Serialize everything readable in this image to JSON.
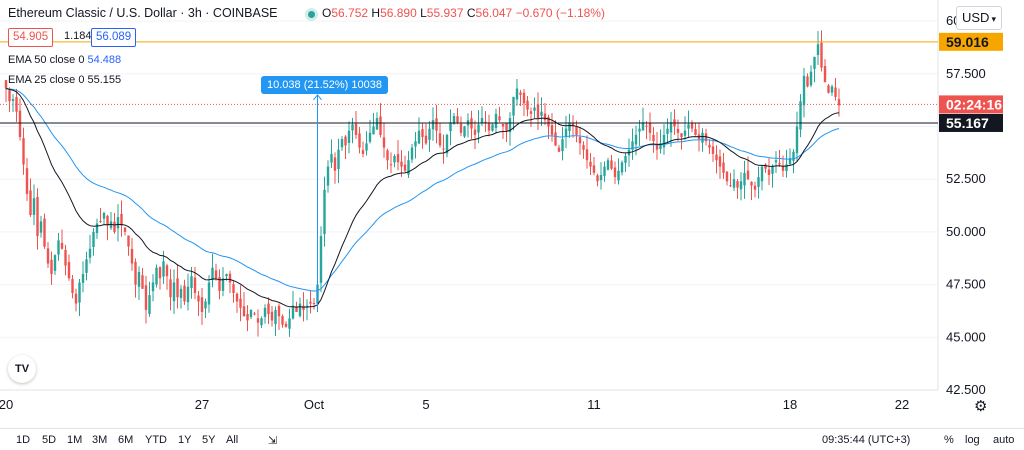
{
  "header": {
    "title": "Ethereum Classic / U.S. Dollar · 3h · COINBASE",
    "ohlc": {
      "o_label": "O",
      "o": "56.752",
      "h_label": "H",
      "h": "56.890",
      "l_label": "L",
      "l": "55.937",
      "c_label": "C",
      "c": "56.047",
      "change": "−0.670 (−1.18%)"
    },
    "bid": "54.905",
    "spread": "1.184",
    "ask": "56.089",
    "indicators": [
      {
        "label": "EMA 50 close 0",
        "value": "54.488",
        "color": "#2196f3"
      },
      {
        "label": "EMA 25 close 0",
        "value": "55.155",
        "color": "#131722"
      }
    ]
  },
  "currency_button": "USD",
  "measure_label": "10.038 (21.52%) 10038",
  "price_labels": {
    "orange_line": "59.016",
    "countdown_price": "02:24:16",
    "black_line": "55.167"
  },
  "bottom_bar": {
    "ranges": [
      "1D",
      "5D",
      "1M",
      "3M",
      "6M",
      "YTD",
      "1Y",
      "5Y",
      "All"
    ],
    "time": "09:35:44 (UTC+3)",
    "percent": "%",
    "log": "log",
    "auto": "auto"
  },
  "colors": {
    "up": "#26a69a",
    "down": "#ef5350",
    "ema50": "#2196f3",
    "ema25": "#131722",
    "orange": "#f7a600",
    "axis_text": "#131722"
  },
  "chart_data": {
    "type": "candlestick",
    "ylim": [
      42.5,
      61.0
    ],
    "y_ticks": [
      "60.000",
      "57.500",
      "55.000",
      "52.500",
      "50.000",
      "47.500",
      "45.000",
      "42.500"
    ],
    "y_tick_values": [
      60.0,
      57.5,
      55.0,
      52.5,
      50.0,
      47.5,
      45.0,
      42.5
    ],
    "x_ticks": [
      {
        "label": "20",
        "index": 0
      },
      {
        "label": "27",
        "index": 56
      },
      {
        "label": "Oct",
        "index": 88
      },
      {
        "label": "5",
        "index": 120
      },
      {
        "label": "11",
        "index": 168
      },
      {
        "label": "18",
        "index": 224
      },
      {
        "label": "22",
        "index": 256
      }
    ],
    "horizontal_lines": [
      {
        "value": 59.016,
        "color": "#f7a600",
        "name": "orange_line"
      },
      {
        "value": 55.167,
        "color": "#131722",
        "name": "black_line"
      }
    ],
    "last_price": 56.047,
    "close_series": [
      56.8,
      56.2,
      56.3,
      55.7,
      54.5,
      53.2,
      51.8,
      50.8,
      51.6,
      49.8,
      50.5,
      49.3,
      48.5,
      48.0,
      48.9,
      49.6,
      49.2,
      48.4,
      47.8,
      47.1,
      46.6,
      47.6,
      48.0,
      48.7,
      49.2,
      50.0,
      50.4,
      50.5,
      50.9,
      50.3,
      50.5,
      50.0,
      50.7,
      50.3,
      50.0,
      49.3,
      48.5,
      47.5,
      48.1,
      47.3,
      46.3,
      47.0,
      47.6,
      48.3,
      47.8,
      48.6,
      47.9,
      46.9,
      47.6,
      46.9,
      47.3,
      46.7,
      47.4,
      47.9,
      47.1,
      46.7,
      46.2,
      46.7,
      47.6,
      48.3,
      47.8,
      47.2,
      47.8,
      48.0,
      47.6,
      47.1,
      46.7,
      46.4,
      46.0,
      45.8,
      46.3,
      46.1,
      45.7,
      45.9,
      46.4,
      46.1,
      45.8,
      46.3,
      46.0,
      45.6,
      45.5,
      45.9,
      46.5,
      46.2,
      46.6,
      46.3,
      46.5,
      46.6,
      46.6,
      47.5,
      49.8,
      52.0,
      53.1,
      53.7,
      52.9,
      53.9,
      54.4,
      54.1,
      54.8,
      55.1,
      54.6,
      54.0,
      53.7,
      54.2,
      54.7,
      55.0,
      55.4,
      54.6,
      54.0,
      53.4,
      53.2,
      53.6,
      53.3,
      53.1,
      52.9,
      53.4,
      54.0,
      54.3,
      54.8,
      54.5,
      54.2,
      54.9,
      55.3,
      54.8,
      54.1,
      53.9,
      54.6,
      55.2,
      55.5,
      55.2,
      54.7,
      55.0,
      55.3,
      54.9,
      54.6,
      55.1,
      55.4,
      55.2,
      54.8,
      55.1,
      55.6,
      55.3,
      55.0,
      54.8,
      55.4,
      56.4,
      56.8,
      56.5,
      56.1,
      55.8,
      55.6,
      55.9,
      55.4,
      55.7,
      55.3,
      55.0,
      54.6,
      54.1,
      53.8,
      54.4,
      54.9,
      55.2,
      55.0,
      54.6,
      54.2,
      53.9,
      53.4,
      53.1,
      52.8,
      52.4,
      52.7,
      53.1,
      53.4,
      53.0,
      52.6,
      52.9,
      53.3,
      53.6,
      53.9,
      54.3,
      54.6,
      54.9,
      55.2,
      55.0,
      54.7,
      54.3,
      53.9,
      54.2,
      54.6,
      54.9,
      55.2,
      55.0,
      54.7,
      54.5,
      54.8,
      55.1,
      54.9,
      54.6,
      54.4,
      54.7,
      54.3,
      54.0,
      53.7,
      53.4,
      53.1,
      52.8,
      52.4,
      52.2,
      52.5,
      52.1,
      52.4,
      52.8,
      52.5,
      52.2,
      52.0,
      52.6,
      53.1,
      53.0,
      52.7,
      53.1,
      53.4,
      53.2,
      52.9,
      53.2,
      53.5,
      53.8,
      55.0,
      56.2,
      57.4,
      56.9,
      57.6,
      58.3,
      58.9,
      57.8,
      57.1,
      56.6,
      56.9,
      56.4,
      56.0
    ]
  }
}
